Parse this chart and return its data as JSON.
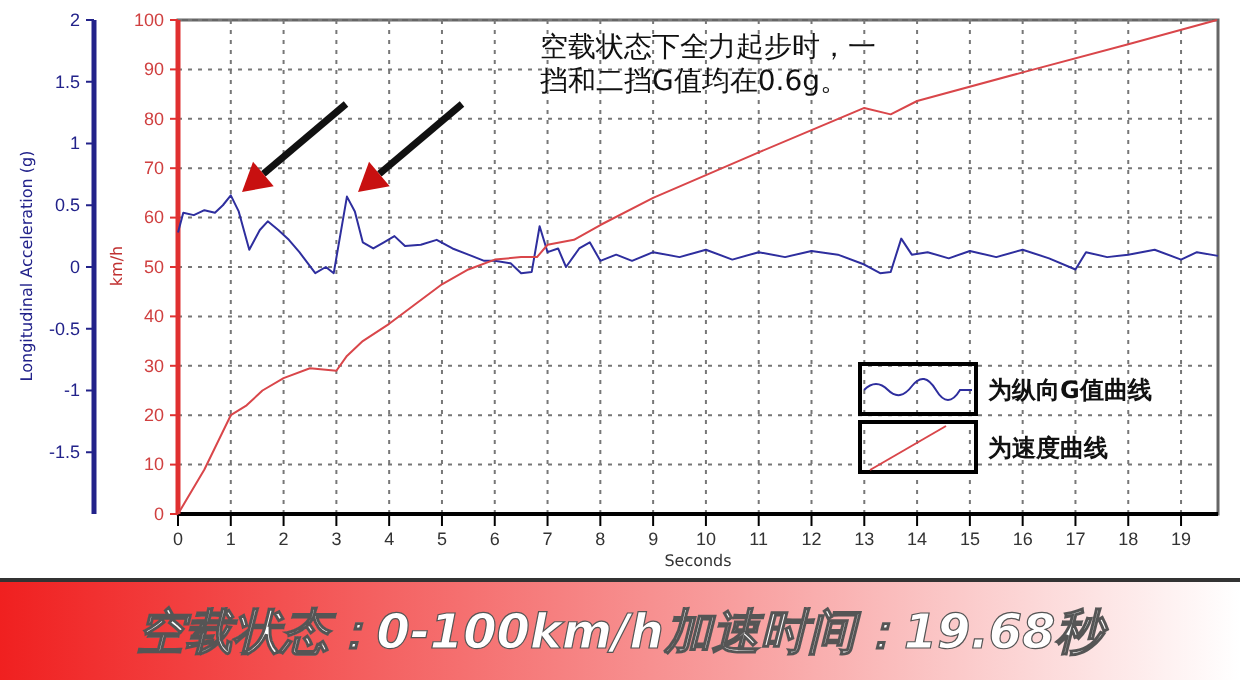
{
  "chart_data": {
    "type": "line",
    "title": "空载状态：0-100km/h加速时间：19.68秒",
    "xlabel": "Seconds",
    "ylabel": "Longitudinal Acceleration (g)",
    "y2label": "km/h",
    "annotations": [
      "空载状态下全力起步时，一挡和二挡G值均在0.6g。"
    ],
    "xlim": [
      0,
      19.7
    ],
    "xticks": [
      0,
      1,
      2,
      3,
      4,
      5,
      6,
      7,
      8,
      9,
      10,
      11,
      12,
      13,
      14,
      15,
      16,
      17,
      18,
      19
    ],
    "ylim": [
      -2,
      2
    ],
    "yticks": [
      -1.5,
      -1,
      -0.5,
      0,
      0.5,
      1,
      1.5,
      2
    ],
    "y2lim": [
      0,
      100
    ],
    "y2ticks": [
      0,
      10,
      20,
      30,
      40,
      50,
      60,
      70,
      80,
      90,
      100
    ],
    "grid": true,
    "legend": "bottom right",
    "line_style": "solid",
    "marker": "none",
    "series": [
      {
        "name": "为纵向G值曲线",
        "color": "#2e2e9e",
        "x": [
          0,
          0.1,
          0.3,
          0.5,
          0.7,
          0.85,
          1.0,
          1.15,
          1.35,
          1.55,
          1.7,
          1.9,
          2.1,
          2.3,
          2.6,
          2.8,
          2.95,
          3.05,
          3.2,
          3.35,
          3.5,
          3.7,
          3.9,
          4.1,
          4.3,
          4.6,
          4.9,
          5.2,
          5.5,
          5.8,
          6.0,
          6.3,
          6.5,
          6.7,
          6.85,
          7.0,
          7.2,
          7.35,
          7.6,
          7.8,
          8.0,
          8.3,
          8.6,
          9.0,
          9.5,
          10.0,
          10.5,
          11.0,
          11.5,
          12.0,
          12.5,
          13.0,
          13.3,
          13.5,
          13.7,
          13.9,
          14.2,
          14.6,
          15.0,
          15.5,
          16.0,
          16.5,
          17.0,
          17.2,
          17.6,
          18.0,
          18.5,
          19.0,
          19.3,
          19.7
        ],
        "values": [
          0.28,
          0.44,
          0.42,
          0.46,
          0.44,
          0.5,
          0.58,
          0.45,
          0.14,
          0.3,
          0.37,
          0.3,
          0.22,
          0.12,
          -0.05,
          0.0,
          -0.05,
          0.2,
          0.57,
          0.45,
          0.2,
          0.15,
          0.2,
          0.25,
          0.17,
          0.18,
          0.22,
          0.15,
          0.1,
          0.05,
          0.05,
          0.03,
          -0.05,
          -0.04,
          0.33,
          0.12,
          0.15,
          0.0,
          0.15,
          0.2,
          0.05,
          0.1,
          0.05,
          0.12,
          0.08,
          0.14,
          0.06,
          0.12,
          0.08,
          0.13,
          0.1,
          0.02,
          -0.05,
          -0.04,
          0.23,
          0.1,
          0.12,
          0.07,
          0.13,
          0.08,
          0.14,
          0.07,
          -0.02,
          0.12,
          0.08,
          0.1,
          0.14,
          0.06,
          0.12,
          0.09
        ]
      },
      {
        "name": "为速度曲线",
        "color": "#d9464a",
        "axis": "y2",
        "x": [
          0,
          0.5,
          1,
          1.3,
          1.6,
          2,
          2.5,
          3,
          3.2,
          3.5,
          4,
          4.5,
          5,
          5.5,
          6,
          6.5,
          6.8,
          7,
          7.5,
          8,
          9,
          10,
          11,
          12,
          13,
          13.5,
          14,
          16,
          18,
          19.68
        ],
        "values": [
          0,
          9,
          20,
          22,
          25,
          27.5,
          29.5,
          29,
          32,
          35,
          38.5,
          42.5,
          46.5,
          49.5,
          51.5,
          52,
          52,
          54.5,
          55.5,
          58.5,
          64,
          68.6,
          73.2,
          77.7,
          82.2,
          80.9,
          83.6,
          89.4,
          95.1,
          100
        ]
      }
    ]
  }
}
